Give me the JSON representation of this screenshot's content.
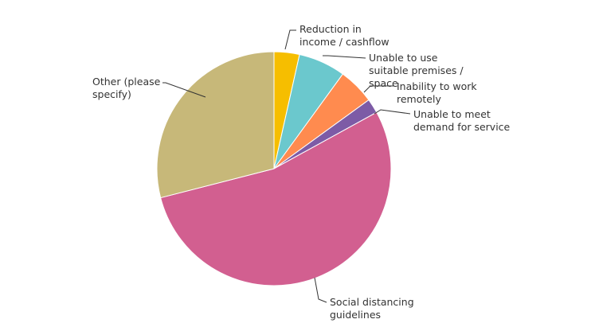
{
  "chart_data": {
    "type": "pie",
    "title": "",
    "slices": [
      {
        "label": "Reduction in income / cashflow",
        "lines": [
          "Reduction in",
          "income / cashflow"
        ],
        "value": 3.5,
        "color": "#F6BE00"
      },
      {
        "label": "Unable to use suitable premises / space",
        "lines": [
          "Unable to use",
          "suitable premises /",
          "space"
        ],
        "value": 6.5,
        "color": "#6BC8CD"
      },
      {
        "label": "Inability to work remotely",
        "lines": [
          "Inability to work",
          "remotely"
        ],
        "value": 5.0,
        "color": "#FF8B4F"
      },
      {
        "label": "Unable to meet demand for service",
        "lines": [
          "Unable to meet",
          "demand for service"
        ],
        "value": 2.0,
        "color": "#7D5BA6"
      },
      {
        "label": "Social distancing guidelines",
        "lines": [
          "Social distancing",
          "guidelines"
        ],
        "value": 54.0,
        "color": "#D25F90"
      },
      {
        "label": "Other (please specify)",
        "lines": [
          "Other (please",
          "specify)"
        ],
        "value": 29.0,
        "color": "#C7B879"
      }
    ]
  }
}
